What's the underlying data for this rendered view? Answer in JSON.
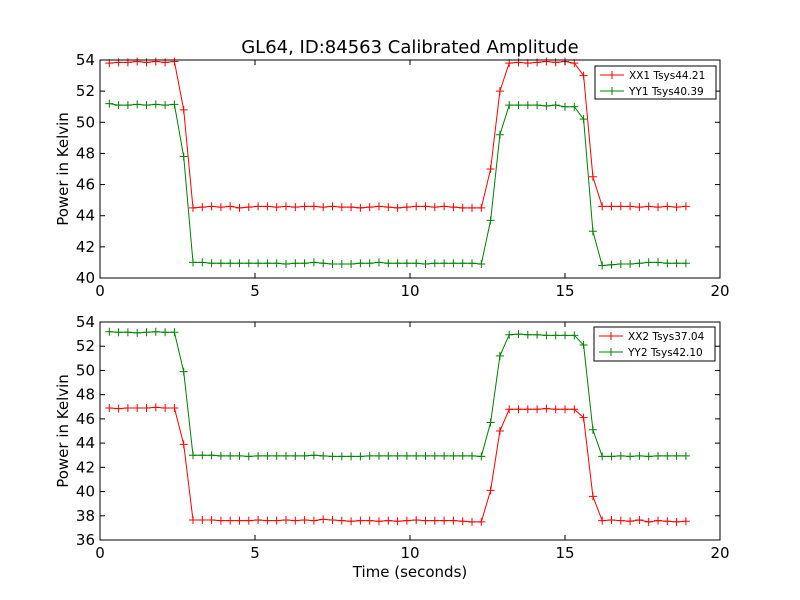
{
  "chart_data": [
    {
      "type": "line",
      "title": "GL64, ID:84563 Calibrated Amplitude",
      "xlabel": "",
      "ylabel": "Power in Kelvin",
      "xlim": [
        0,
        20
      ],
      "ylim": [
        40,
        54
      ],
      "xticks": [
        "0",
        "5",
        "10",
        "15",
        "20"
      ],
      "yticks": [
        "40",
        "42",
        "44",
        "46",
        "48",
        "50",
        "52",
        "54"
      ],
      "grid": false,
      "legend_position": "top-right",
      "x": [
        0.3,
        0.6,
        0.9,
        1.2,
        1.5,
        1.8,
        2.1,
        2.4,
        2.7,
        3.0,
        3.3,
        3.6,
        3.9,
        4.2,
        4.5,
        4.8,
        5.1,
        5.4,
        5.7,
        6.0,
        6.3,
        6.6,
        6.9,
        7.2,
        7.5,
        7.8,
        8.1,
        8.4,
        8.7,
        9.0,
        9.3,
        9.6,
        9.9,
        10.2,
        10.5,
        10.8,
        11.1,
        11.4,
        11.7,
        12.0,
        12.3,
        12.6,
        12.9,
        13.2,
        13.5,
        13.8,
        14.1,
        14.4,
        14.7,
        15.0,
        15.3,
        15.6,
        15.9,
        16.2,
        16.5,
        16.8,
        17.1,
        17.4,
        17.7,
        18.0,
        18.3,
        18.6,
        18.9
      ],
      "series": [
        {
          "name": "XX1 Tsys44.21",
          "color": "#ff0000",
          "values": [
            53.8,
            53.85,
            53.85,
            53.9,
            53.85,
            53.9,
            53.85,
            53.9,
            50.8,
            44.5,
            44.55,
            44.6,
            44.55,
            44.6,
            44.5,
            44.55,
            44.6,
            44.6,
            44.55,
            44.6,
            44.55,
            44.6,
            44.6,
            44.55,
            44.6,
            44.55,
            44.55,
            44.5,
            44.55,
            44.6,
            44.55,
            44.5,
            44.55,
            44.6,
            44.6,
            44.55,
            44.6,
            44.55,
            44.5,
            44.5,
            44.5,
            47.0,
            52.0,
            53.8,
            53.85,
            53.8,
            53.85,
            53.9,
            53.85,
            53.9,
            53.8,
            53.0,
            46.5,
            44.6,
            44.6,
            44.6,
            44.6,
            44.55,
            44.6,
            44.55,
            44.6,
            44.55,
            44.6
          ]
        },
        {
          "name": "YY1 Tsys40.39",
          "color": "#008000",
          "values": [
            51.2,
            51.1,
            51.1,
            51.15,
            51.1,
            51.15,
            51.1,
            51.15,
            47.8,
            41.0,
            41.0,
            40.95,
            40.95,
            40.95,
            40.95,
            40.95,
            40.95,
            40.95,
            40.95,
            40.9,
            40.95,
            40.95,
            41.0,
            40.95,
            40.9,
            40.9,
            40.9,
            40.95,
            40.95,
            41.0,
            40.95,
            40.95,
            40.95,
            40.95,
            40.9,
            40.95,
            40.95,
            40.95,
            40.95,
            40.95,
            40.9,
            43.7,
            49.2,
            51.1,
            51.1,
            51.1,
            51.1,
            51.05,
            51.1,
            51.0,
            51.0,
            50.2,
            43.0,
            40.8,
            40.85,
            40.9,
            40.9,
            40.95,
            41.0,
            41.0,
            40.95,
            40.95,
            40.95
          ]
        }
      ]
    },
    {
      "type": "line",
      "title": "",
      "xlabel": "Time (seconds)",
      "ylabel": "Power in Kelvin",
      "xlim": [
        0,
        20
      ],
      "ylim": [
        36,
        54
      ],
      "xticks": [
        "0",
        "5",
        "10",
        "15",
        "20"
      ],
      "yticks": [
        "36",
        "38",
        "40",
        "42",
        "44",
        "46",
        "48",
        "50",
        "52",
        "54"
      ],
      "grid": false,
      "legend_position": "top-right",
      "x": [
        0.3,
        0.6,
        0.9,
        1.2,
        1.5,
        1.8,
        2.1,
        2.4,
        2.7,
        3.0,
        3.3,
        3.6,
        3.9,
        4.2,
        4.5,
        4.8,
        5.1,
        5.4,
        5.7,
        6.0,
        6.3,
        6.6,
        6.9,
        7.2,
        7.5,
        7.8,
        8.1,
        8.4,
        8.7,
        9.0,
        9.3,
        9.6,
        9.9,
        10.2,
        10.5,
        10.8,
        11.1,
        11.4,
        11.7,
        12.0,
        12.3,
        12.6,
        12.9,
        13.2,
        13.5,
        13.8,
        14.1,
        14.4,
        14.7,
        15.0,
        15.3,
        15.6,
        15.9,
        16.2,
        16.5,
        16.8,
        17.1,
        17.4,
        17.7,
        18.0,
        18.3,
        18.6,
        18.9
      ],
      "series": [
        {
          "name": "XX2 Tsys37.04",
          "color": "#ff0000",
          "values": [
            46.9,
            46.85,
            46.9,
            46.9,
            46.9,
            46.95,
            46.9,
            46.9,
            43.9,
            37.65,
            37.65,
            37.65,
            37.6,
            37.6,
            37.6,
            37.6,
            37.65,
            37.6,
            37.6,
            37.65,
            37.6,
            37.65,
            37.6,
            37.7,
            37.65,
            37.6,
            37.55,
            37.6,
            37.6,
            37.55,
            37.6,
            37.55,
            37.6,
            37.65,
            37.6,
            37.6,
            37.6,
            37.6,
            37.55,
            37.5,
            37.5,
            40.1,
            45.0,
            46.8,
            46.8,
            46.8,
            46.8,
            46.85,
            46.8,
            46.8,
            46.8,
            46.1,
            39.6,
            37.6,
            37.65,
            37.6,
            37.55,
            37.65,
            37.5,
            37.6,
            37.55,
            37.5,
            37.55
          ]
        },
        {
          "name": "YY2 Tsys42.10",
          "color": "#008000",
          "values": [
            53.2,
            53.15,
            53.15,
            53.1,
            53.15,
            53.2,
            53.15,
            53.15,
            49.9,
            43.0,
            43.0,
            43.0,
            42.95,
            42.95,
            42.95,
            42.9,
            42.95,
            42.95,
            42.95,
            42.95,
            42.95,
            42.95,
            43.0,
            42.95,
            42.9,
            42.9,
            42.9,
            42.9,
            42.95,
            42.95,
            42.95,
            42.95,
            42.95,
            42.95,
            42.95,
            42.95,
            42.95,
            42.95,
            42.95,
            42.95,
            42.9,
            45.7,
            51.2,
            52.95,
            53.0,
            52.95,
            52.95,
            52.9,
            52.9,
            52.9,
            52.9,
            52.1,
            45.1,
            42.9,
            42.9,
            42.95,
            42.9,
            42.95,
            42.9,
            42.95,
            42.95,
            42.95,
            42.95
          ]
        }
      ]
    }
  ]
}
